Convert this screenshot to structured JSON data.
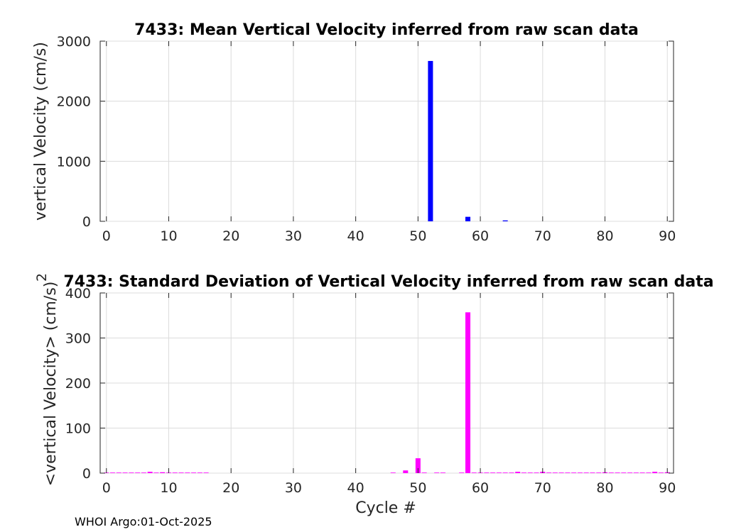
{
  "chart_data": [
    {
      "type": "bar",
      "title": "7433: Mean Vertical Velocity inferred from raw scan data",
      "xlabel": "",
      "ylabel": "vertical Velocity (cm/s)",
      "xlim": [
        -1,
        91
      ],
      "ylim": [
        0,
        3000
      ],
      "xticks": [
        0,
        10,
        20,
        30,
        40,
        50,
        60,
        70,
        80,
        90
      ],
      "yticks": [
        0,
        1000,
        2000,
        3000
      ],
      "grid": true,
      "color": "#0000ff",
      "x": [
        52,
        58,
        64
      ],
      "values": [
        2670,
        75,
        15
      ]
    },
    {
      "type": "bar",
      "title": "7433: Standard Deviation of Vertical Velocity inferred from raw scan data",
      "xlabel": "Cycle #",
      "ylabel": "<vertical Velocity> (cm/s)",
      "ylabel_superscript": "2",
      "xlim": [
        -1,
        91
      ],
      "ylim": [
        0,
        400
      ],
      "xticks": [
        0,
        10,
        20,
        30,
        40,
        50,
        60,
        70,
        80,
        90
      ],
      "yticks": [
        0,
        100,
        200,
        300,
        400
      ],
      "grid": true,
      "color": "#ff00ff",
      "x": [
        0,
        1,
        2,
        3,
        4,
        5,
        6,
        7,
        8,
        9,
        10,
        11,
        12,
        13,
        14,
        15,
        16,
        46,
        48,
        50,
        51,
        53,
        54,
        57,
        58,
        59,
        60,
        61,
        62,
        63,
        64,
        65,
        66,
        67,
        68,
        69,
        70,
        71,
        72,
        73,
        74,
        75,
        76,
        77,
        78,
        79,
        80,
        81,
        82,
        83,
        84,
        85,
        86,
        87,
        88,
        89,
        90
      ],
      "values": [
        1,
        1,
        1,
        1,
        1,
        1,
        1,
        3,
        1,
        2,
        1,
        1,
        1,
        1,
        1,
        1,
        1,
        1,
        6,
        33,
        1,
        1,
        1,
        1,
        357,
        1,
        1,
        1,
        1,
        1,
        1,
        1,
        3,
        1,
        1,
        1,
        3,
        1,
        1,
        1,
        1,
        1,
        1,
        1,
        1,
        1,
        2,
        1,
        1,
        1,
        1,
        1,
        1,
        1,
        3,
        1,
        2
      ]
    }
  ],
  "footer": "WHOI Argo:01-Oct-2025"
}
